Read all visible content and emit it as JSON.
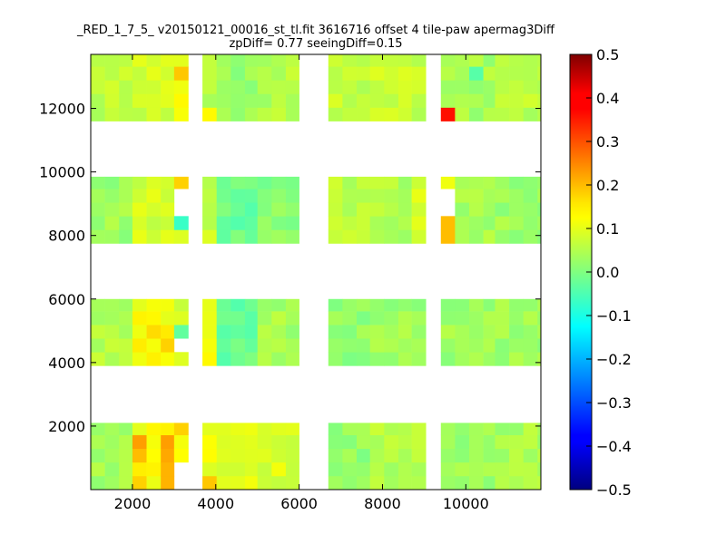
{
  "chart_data": {
    "type": "heatmap",
    "title": "_RED_1_7_5_ v20150121_00016_st_tl.fit 3616716 offset 4 tile-paw apermag3Diff",
    "subtitle": "zpDiff= 0.77 seeingDiff=0.15",
    "xlim": [
      1000,
      11800
    ],
    "ylim": [
      0,
      13700
    ],
    "x_ticks": [
      2000,
      4000,
      6000,
      8000,
      10000
    ],
    "y_ticks": [
      2000,
      4000,
      6000,
      8000,
      10000,
      12000
    ],
    "colorbar": {
      "colormap": "jet",
      "vmin": -0.5,
      "vmax": 0.5,
      "ticks": [
        "0.5",
        "0.4",
        "0.3",
        "0.2",
        "0.1",
        "0.0",
        "−0.1",
        "−0.2",
        "−0.3",
        "−0.4",
        "−0.5"
      ]
    },
    "cell_size": [
      340,
      430
    ],
    "detector_columns": [
      {
        "x0": 1000,
        "x1": 2000
      },
      {
        "x0": 2000,
        "x1": 3000
      },
      {
        "x0": 3000,
        "x1": 3340
      },
      {
        "x0": 3680,
        "x1": 4020
      },
      {
        "x0": 4020,
        "x1": 5000
      },
      {
        "x0": 5000,
        "x1": 6000
      },
      {
        "x0": 6700,
        "x1": 7700
      },
      {
        "x0": 7700,
        "x1": 8700
      },
      {
        "x0": 8700,
        "x1": 9040
      },
      {
        "x0": 9400,
        "x1": 9740
      },
      {
        "x0": 9740,
        "x1": 10700
      },
      {
        "x0": 10700,
        "x1": 11800
      }
    ],
    "detector_rows": [
      {
        "y0": 0,
        "y1": 2100
      },
      {
        "y0": 3900,
        "y1": 6000
      },
      {
        "y0": 7750,
        "y1": 9850
      },
      {
        "y0": 11600,
        "y1": 13700
      }
    ],
    "base_values": [
      [
        0.04,
        0.12,
        0.14,
        0.11,
        0.1,
        0.09,
        0.02,
        0.05,
        0.06,
        0.02,
        0.03,
        0.04
      ],
      [
        0.05,
        0.12,
        0.09,
        0.1,
        -0.02,
        0.04,
        0.02,
        0.03,
        0.02,
        0.03,
        0.03,
        0.03
      ],
      [
        0.03,
        0.08,
        0.11,
        0.07,
        -0.02,
        0.01,
        0.06,
        0.05,
        0.09,
        0.07,
        0.04,
        0.03
      ],
      [
        0.06,
        0.08,
        0.1,
        0.05,
        0.02,
        0.05,
        0.06,
        0.08,
        0.07,
        0.04,
        0.04,
        0.06
      ]
    ],
    "special_cells": [
      {
        "x": 2300,
        "y": 1500,
        "value": 0.22
      },
      {
        "x": 2700,
        "y": 1500,
        "value": 0.22
      },
      {
        "x": 2300,
        "y": 1100,
        "value": 0.19
      },
      {
        "x": 2700,
        "y": 1100,
        "value": 0.21
      },
      {
        "x": 2700,
        "y": 700,
        "value": 0.2
      },
      {
        "x": 2700,
        "y": 300,
        "value": 0.2
      },
      {
        "x": 2300,
        "y": 300,
        "value": 0.17
      },
      {
        "x": 3150,
        "y": 1900,
        "value": 0.17
      },
      {
        "x": 3850,
        "y": 300,
        "value": 0.18
      },
      {
        "x": 9050,
        "y": 700,
        "value": 0.13
      },
      {
        "x": 2500,
        "y": 4800,
        "value": 0.16
      },
      {
        "x": 2700,
        "y": 4400,
        "value": 0.17
      },
      {
        "x": 3150,
        "y": 5000,
        "value": -0.03
      },
      {
        "x": 3850,
        "y": 4100,
        "value": 0.13
      },
      {
        "x": 3150,
        "y": 9600,
        "value": 0.17
      },
      {
        "x": 3150,
        "y": 8500,
        "value": -0.07
      },
      {
        "x": 4200,
        "y": 10200,
        "value": -0.1
      },
      {
        "x": 9600,
        "y": 8500,
        "value": 0.19
      },
      {
        "x": 9600,
        "y": 8100,
        "value": 0.19
      },
      {
        "x": 9600,
        "y": 9600,
        "value": 0.11
      },
      {
        "x": 3150,
        "y": 13100,
        "value": 0.18
      },
      {
        "x": 3150,
        "y": 12800,
        "value": 0.11
      },
      {
        "x": 3150,
        "y": 12300,
        "value": 0.13
      },
      {
        "x": 3850,
        "y": 11800,
        "value": 0.13
      },
      {
        "x": 9600,
        "y": 11800,
        "value": 0.36
      },
      {
        "x": 6850,
        "y": 12400,
        "value": 0.09
      },
      {
        "x": 10300,
        "y": 13300,
        "value": -0.04
      }
    ],
    "missing_cells": [
      {
        "x": 3150,
        "y": 4600
      },
      {
        "x": 3150,
        "y": 9200
      },
      {
        "x": 3150,
        "y": 8900
      },
      {
        "x": 9600,
        "y": 8900
      },
      {
        "x": 9600,
        "y": 9300
      },
      {
        "x": 3150,
        "y": 300
      },
      {
        "x": 3150,
        "y": 700
      }
    ],
    "grid": false,
    "legend": "none"
  }
}
